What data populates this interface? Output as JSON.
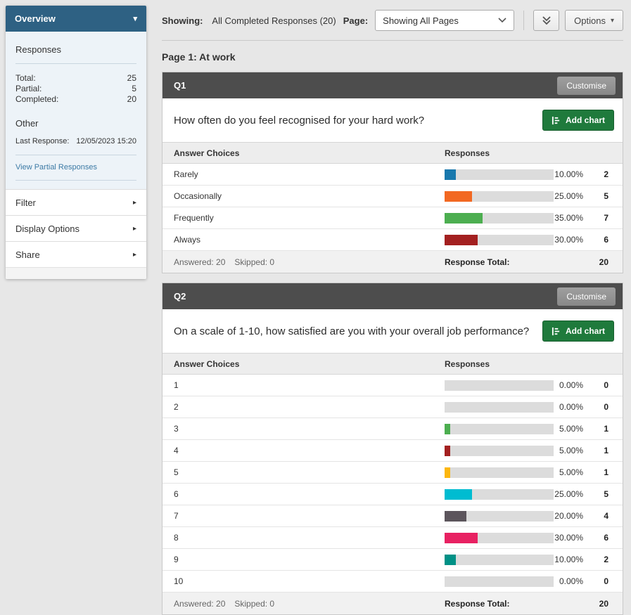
{
  "colors": {
    "sidebar_header": "#2e6183",
    "panel_header": "#4d4d4d",
    "add_chart_green": "#1f7a3c",
    "bar_track": "#dcdcdc"
  },
  "sidebar": {
    "header_label": "Overview",
    "responses_title": "Responses",
    "stats": [
      {
        "label": "Total:",
        "value": "25"
      },
      {
        "label": "Partial:",
        "value": "5"
      },
      {
        "label": "Completed:",
        "value": "20"
      }
    ],
    "other_title": "Other",
    "last_response": {
      "label": "Last Response:",
      "value": "12/05/2023 15:20"
    },
    "partial_link": "View Partial Responses",
    "menu": [
      {
        "label": "Filter"
      },
      {
        "label": "Display Options"
      },
      {
        "label": "Share"
      }
    ]
  },
  "topbar": {
    "showing_label": "Showing:",
    "showing_value": "All Completed Responses (20)",
    "page_label": "Page:",
    "page_select_value": "Showing All Pages",
    "options_label": "Options"
  },
  "page_title": "Page 1: At work",
  "table": {
    "col_answer": "Answer Choices",
    "col_responses": "Responses"
  },
  "questions": [
    {
      "id": "Q1",
      "customise_label": "Customise",
      "add_chart_label": "Add chart",
      "text": "How often do you feel recognised for your hard work?",
      "rows": [
        {
          "label": "Rarely",
          "pct": "10.00%",
          "pct_num": 10,
          "count": "2",
          "color": "#1878ad"
        },
        {
          "label": "Occasionally",
          "pct": "25.00%",
          "pct_num": 25,
          "count": "5",
          "color": "#f26822"
        },
        {
          "label": "Frequently",
          "pct": "35.00%",
          "pct_num": 35,
          "count": "7",
          "color": "#4cae50"
        },
        {
          "label": "Always",
          "pct": "30.00%",
          "pct_num": 30,
          "count": "6",
          "color": "#a32020"
        }
      ],
      "answered": "Answered: 20",
      "skipped": "Skipped: 0",
      "total_label": "Response Total:",
      "total_value": "20"
    },
    {
      "id": "Q2",
      "customise_label": "Customise",
      "add_chart_label": "Add chart",
      "text": "On a scale of 1-10, how satisfied are you with your overall job performance?",
      "rows": [
        {
          "label": "1",
          "pct": "0.00%",
          "pct_num": 0,
          "count": "0",
          "color": ""
        },
        {
          "label": "2",
          "pct": "0.00%",
          "pct_num": 0,
          "count": "0",
          "color": ""
        },
        {
          "label": "3",
          "pct": "5.00%",
          "pct_num": 5,
          "count": "1",
          "color": "#4cae50"
        },
        {
          "label": "4",
          "pct": "5.00%",
          "pct_num": 5,
          "count": "1",
          "color": "#a32020"
        },
        {
          "label": "5",
          "pct": "5.00%",
          "pct_num": 5,
          "count": "1",
          "color": "#fcb70f"
        },
        {
          "label": "6",
          "pct": "25.00%",
          "pct_num": 25,
          "count": "5",
          "color": "#00bcd1"
        },
        {
          "label": "7",
          "pct": "20.00%",
          "pct_num": 20,
          "count": "4",
          "color": "#5c555c"
        },
        {
          "label": "8",
          "pct": "30.00%",
          "pct_num": 30,
          "count": "6",
          "color": "#e82162"
        },
        {
          "label": "9",
          "pct": "10.00%",
          "pct_num": 10,
          "count": "2",
          "color": "#009186"
        },
        {
          "label": "10",
          "pct": "0.00%",
          "pct_num": 0,
          "count": "0",
          "color": ""
        }
      ],
      "answered": "Answered: 20",
      "skipped": "Skipped: 0",
      "total_label": "Response Total:",
      "total_value": "20"
    }
  ]
}
